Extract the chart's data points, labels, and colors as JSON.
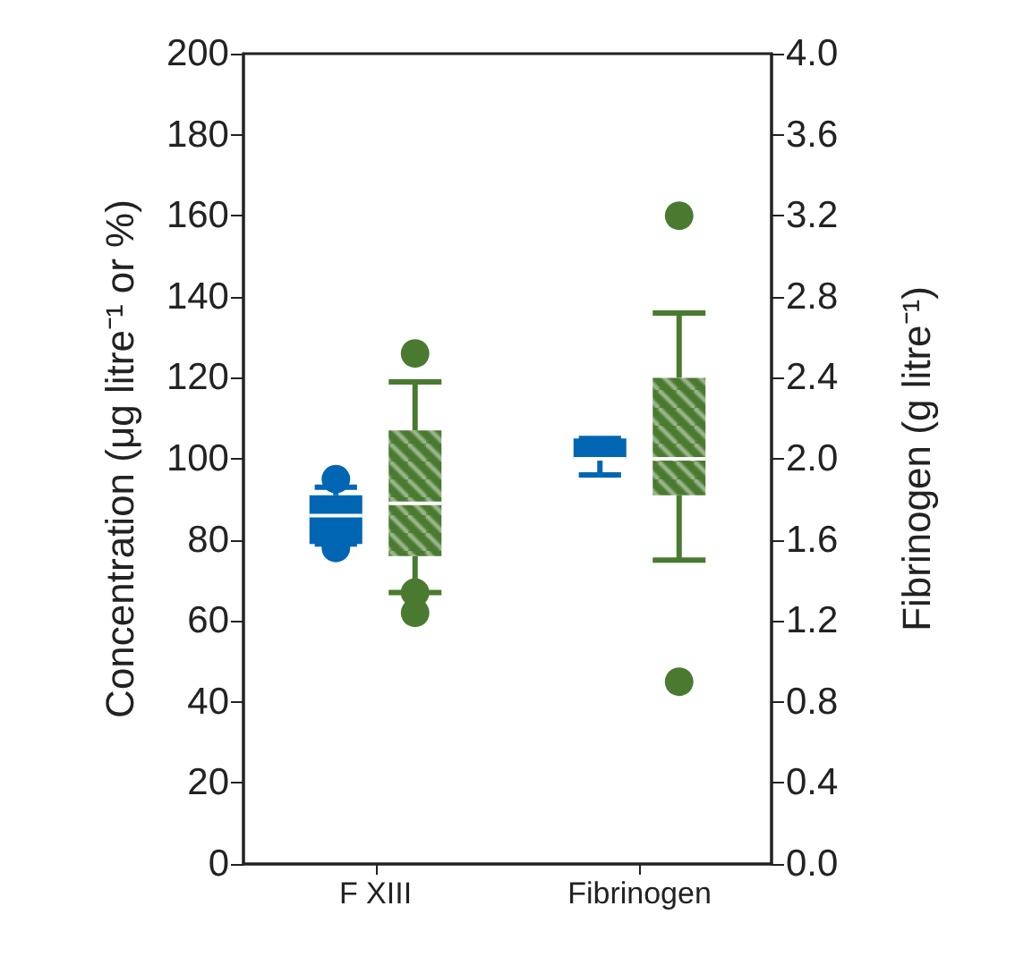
{
  "chart_data": {
    "type": "box",
    "categories": [
      "F XIII",
      "Fibrinogen"
    ],
    "ylabel": "Concentration (μg litre⁻¹ or %)",
    "y2label": "Fibrinogen (g litre⁻¹)",
    "ylim": [
      0,
      200
    ],
    "yticks": [
      0,
      20,
      40,
      60,
      80,
      100,
      120,
      140,
      160,
      180,
      200
    ],
    "y2lim": [
      0,
      4
    ],
    "y2ticks": [
      {
        "value": 0,
        "label": "0.0"
      },
      0.4,
      0.8,
      1.2,
      1.6,
      {
        "value": 2,
        "label": "2.0"
      },
      2.4,
      2.8,
      3.2,
      3.6,
      {
        "value": 4,
        "label": "4.0"
      }
    ],
    "grid": false,
    "series": [
      {
        "color": "#0066b3",
        "boxes": [
          {
            "low": 79,
            "q1": 79,
            "median": 86,
            "q3": 91,
            "high": 93,
            "outliers": [
              95,
              78
            ]
          },
          {
            "low": 96,
            "q1": 100,
            "median": 100,
            "q3": 105,
            "high": 105
          }
        ]
      },
      {
        "color": "#4a7a30",
        "boxes": [
          {
            "low": 67,
            "q1": 76,
            "median": 89,
            "q3": 107,
            "high": 119,
            "outliers": [
              126,
              67,
              62
            ]
          },
          {
            "low": 75,
            "q1": 91,
            "median": 100,
            "q3": 120,
            "high": 136,
            "outliers": [
              160,
              45
            ]
          }
        ]
      }
    ]
  }
}
